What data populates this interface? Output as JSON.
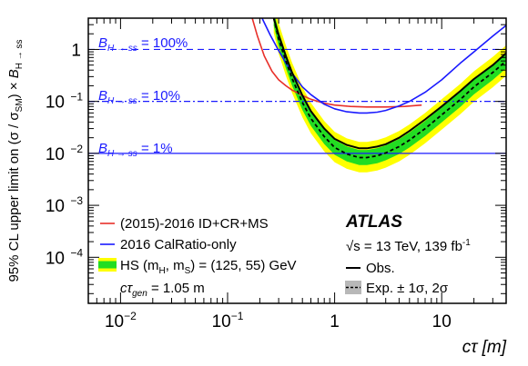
{
  "chart_data": {
    "type": "line",
    "xlabel": "cτ [m]",
    "ylabel": "95% CL upper limit on (σ / σSM) × BH→ss",
    "xscale": "log",
    "yscale": "log",
    "xlim": [
      0.005,
      40
    ],
    "ylim": [
      1.3e-05,
      4
    ],
    "x_ticks": [
      {
        "value": 0.01,
        "base": "10",
        "exp": "−2"
      },
      {
        "value": 0.1,
        "base": "10",
        "exp": "−1"
      },
      {
        "value": 1,
        "base": "1",
        "exp": ""
      },
      {
        "value": 10,
        "base": "10",
        "exp": ""
      }
    ],
    "y_ticks": [
      {
        "value": 1,
        "base": "1",
        "exp": ""
      },
      {
        "value": 0.1,
        "base": "10",
        "exp": "−1"
      },
      {
        "value": 0.01,
        "base": "10",
        "exp": "−2"
      },
      {
        "value": 0.001,
        "base": "10",
        "exp": "−3"
      },
      {
        "value": 0.0001,
        "base": "10",
        "exp": "−4"
      }
    ],
    "reference_lines": [
      {
        "label": "BH→ss = 100%",
        "value": 1,
        "style": "dashed",
        "color": "#1a1aff"
      },
      {
        "label": "BH→ss = 10%",
        "value": 0.1,
        "style": "dashdot",
        "color": "#1a1aff"
      },
      {
        "label": "BH→ss = 1%",
        "value": 0.01,
        "style": "solid",
        "color": "#1a1aff"
      }
    ],
    "series": [
      {
        "name": "(2015)-2016 ID+CR+MS",
        "color": "#e8302a",
        "x": [
          0.17,
          0.19,
          0.22,
          0.26,
          0.3,
          0.35,
          0.4,
          0.5,
          0.6,
          0.8,
          1.0,
          1.4,
          2.0,
          3.0,
          4.5,
          6.5
        ],
        "y": [
          4,
          1.8,
          0.75,
          0.38,
          0.26,
          0.2,
          0.165,
          0.13,
          0.11,
          0.092,
          0.085,
          0.08,
          0.078,
          0.078,
          0.08,
          0.085
        ]
      },
      {
        "name": "2016 CalRatio-only",
        "color": "#1a1aff",
        "x": [
          0.21,
          0.25,
          0.3,
          0.35,
          0.4,
          0.5,
          0.6,
          0.8,
          1.0,
          1.3,
          1.7,
          2.0,
          2.5,
          3.0,
          4.0,
          5.0,
          7.0,
          10,
          15,
          20,
          30,
          40
        ],
        "y": [
          4,
          1.9,
          0.95,
          0.55,
          0.35,
          0.19,
          0.135,
          0.088,
          0.072,
          0.063,
          0.06,
          0.06,
          0.062,
          0.067,
          0.082,
          0.1,
          0.15,
          0.26,
          0.55,
          0.9,
          1.8,
          2.9
        ]
      },
      {
        "name": "Obs.",
        "color": "#000000",
        "x": [
          0.27,
          0.3,
          0.35,
          0.4,
          0.5,
          0.6,
          0.8,
          1.0,
          1.3,
          1.7,
          2.0,
          2.5,
          3.0,
          4.0,
          5.0,
          7.0,
          10,
          15,
          20,
          30,
          40
        ],
        "y": [
          4,
          1.9,
          0.75,
          0.36,
          0.13,
          0.065,
          0.03,
          0.019,
          0.0145,
          0.0125,
          0.0125,
          0.0135,
          0.015,
          0.02,
          0.027,
          0.045,
          0.08,
          0.16,
          0.27,
          0.5,
          0.85
        ]
      },
      {
        "name": "Exp. ± 1σ, 2σ",
        "color": "#000000",
        "x": [
          0.27,
          0.3,
          0.35,
          0.4,
          0.5,
          0.6,
          0.8,
          1.0,
          1.3,
          1.7,
          2.0,
          2.5,
          3.0,
          4.0,
          5.0,
          7.0,
          10,
          15,
          20,
          30,
          40
        ],
        "y": [
          4,
          1.6,
          0.6,
          0.28,
          0.095,
          0.047,
          0.021,
          0.013,
          0.0097,
          0.0083,
          0.0083,
          0.009,
          0.0102,
          0.0135,
          0.018,
          0.03,
          0.055,
          0.11,
          0.19,
          0.36,
          0.6
        ],
        "band_1sigma": {
          "color": "#22dd22",
          "lo_factor": 0.72,
          "hi_factor": 1.4
        },
        "band_2sigma": {
          "color": "#ffff00",
          "lo_factor": 0.52,
          "hi_factor": 2.0
        }
      }
    ],
    "legend_left": [
      {
        "label": "(2015)-2016 ID+CR+MS",
        "kind": "line",
        "color": "#e8302a"
      },
      {
        "label": "2016 CalRatio-only",
        "kind": "line",
        "color": "#1a1aff"
      },
      {
        "label": "HS (mH, mS) = (125, 55) GeV",
        "kind": "band"
      }
    ],
    "ctau_gen": "cτgen = 1.05 m",
    "atlas": "ATLAS",
    "energy": "√s = 13 TeV, 139 fb-1",
    "legend_right": [
      {
        "label": "Obs.",
        "kind": "solid"
      },
      {
        "label": "Exp. ± 1σ, 2σ",
        "kind": "dashed-band"
      }
    ]
  }
}
